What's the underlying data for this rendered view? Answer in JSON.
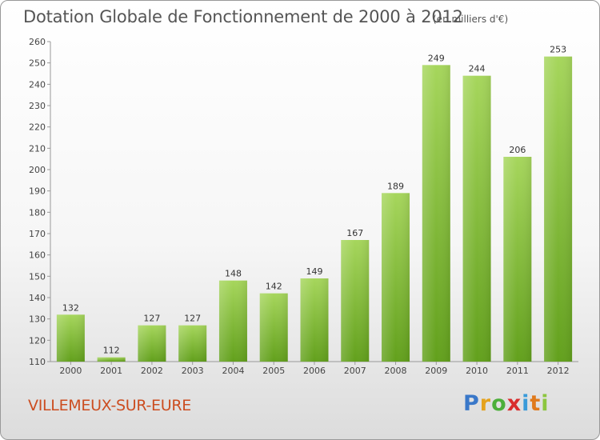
{
  "title": "Dotation Globale de Fonctionnement de 2000 à 2012",
  "unit_note": "(en milliers d'€)",
  "commune": "VILLEMEUX-SUR-EURE",
  "logo": {
    "p": "P",
    "r": "r",
    "o": "o",
    "x": "x",
    "i": "i",
    "t": "t",
    "i2": "i"
  },
  "colors": {
    "bar_light": "#a6d65c",
    "bar_dark": "#62a01c",
    "commune": "#cc4d20",
    "text": "#555555"
  },
  "chart_data": {
    "type": "bar",
    "categories": [
      "2000",
      "2001",
      "2002",
      "2003",
      "2004",
      "2005",
      "2006",
      "2007",
      "2008",
      "2009",
      "2010",
      "2011",
      "2012"
    ],
    "values": [
      132,
      112,
      127,
      127,
      148,
      142,
      149,
      167,
      189,
      249,
      244,
      206,
      253
    ],
    "ylim": [
      110,
      260
    ],
    "yticks": [
      110,
      120,
      130,
      140,
      150,
      160,
      170,
      180,
      190,
      200,
      210,
      220,
      230,
      240,
      250,
      260
    ],
    "grid": false,
    "data_labels": true
  }
}
